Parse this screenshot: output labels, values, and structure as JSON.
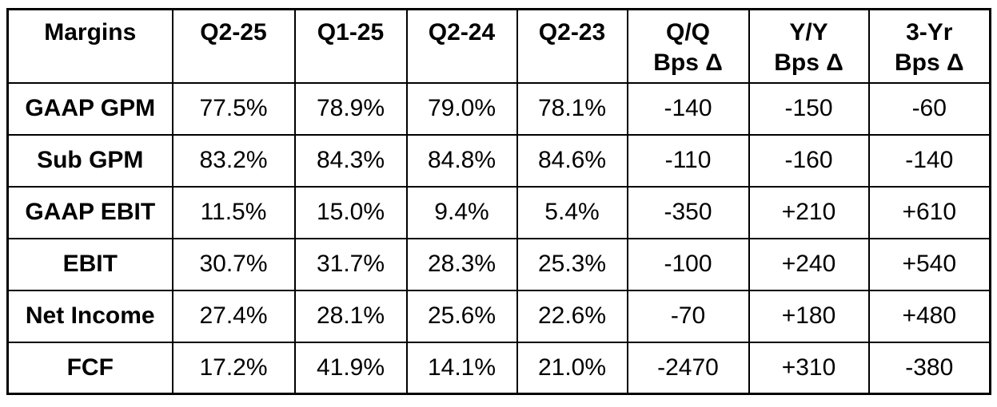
{
  "table": {
    "columns": [
      {
        "label": "Margins",
        "sublabel": ""
      },
      {
        "label": "Q2-25",
        "sublabel": ""
      },
      {
        "label": "Q1-25",
        "sublabel": ""
      },
      {
        "label": "Q2-24",
        "sublabel": ""
      },
      {
        "label": "Q2-23",
        "sublabel": ""
      },
      {
        "label": "Q/Q",
        "sublabel": "Bps Δ"
      },
      {
        "label": "Y/Y",
        "sublabel": "Bps Δ"
      },
      {
        "label": "3-Yr",
        "sublabel": "Bps Δ"
      }
    ],
    "rows": [
      {
        "label": "GAAP GPM",
        "values": [
          "77.5%",
          "78.9%",
          "79.0%",
          "78.1%",
          "-140",
          "-150",
          "-60"
        ]
      },
      {
        "label": "Sub GPM",
        "values": [
          "83.2%",
          "84.3%",
          "84.8%",
          "84.6%",
          "-110",
          "-160",
          "-140"
        ]
      },
      {
        "label": "GAAP EBIT",
        "values": [
          "11.5%",
          "15.0%",
          "9.4%",
          "5.4%",
          "-350",
          "+210",
          "+610"
        ]
      },
      {
        "label": "EBIT",
        "values": [
          "30.7%",
          "31.7%",
          "28.3%",
          "25.3%",
          "-100",
          "+240",
          "+540"
        ]
      },
      {
        "label": "Net Income",
        "values": [
          "27.4%",
          "28.1%",
          "25.6%",
          "22.6%",
          "-70",
          "+180",
          "+480"
        ]
      },
      {
        "label": "FCF",
        "values": [
          "17.2%",
          "41.9%",
          "14.1%",
          "21.0%",
          "-2470",
          "+310",
          "-380"
        ]
      }
    ]
  },
  "colors": {
    "border": "#000000",
    "background": "#ffffff",
    "text": "#000000"
  },
  "chart_data": {
    "type": "table",
    "title": "Margins",
    "column_headers": [
      "Margins",
      "Q2-25",
      "Q1-25",
      "Q2-24",
      "Q2-23",
      "Q/Q Bps Δ",
      "Y/Y Bps Δ",
      "3-Yr Bps Δ"
    ],
    "row_labels": [
      "GAAP GPM",
      "Sub GPM",
      "GAAP EBIT",
      "EBIT",
      "Net Income",
      "FCF"
    ],
    "series": [
      {
        "name": "Q2-25",
        "values_pct": [
          77.5,
          83.2,
          11.5,
          30.7,
          27.4,
          17.2
        ]
      },
      {
        "name": "Q1-25",
        "values_pct": [
          78.9,
          84.3,
          15.0,
          31.7,
          28.1,
          41.9
        ]
      },
      {
        "name": "Q2-24",
        "values_pct": [
          79.0,
          84.8,
          9.4,
          28.3,
          25.6,
          14.1
        ]
      },
      {
        "name": "Q2-23",
        "values_pct": [
          78.1,
          84.6,
          5.4,
          25.3,
          22.6,
          21.0
        ]
      },
      {
        "name": "Q/Q Bps Δ",
        "values_bps": [
          -140,
          -110,
          -350,
          -100,
          -70,
          -2470
        ]
      },
      {
        "name": "Y/Y Bps Δ",
        "values_bps": [
          -150,
          -160,
          210,
          240,
          180,
          310
        ]
      },
      {
        "name": "3-Yr Bps Δ",
        "values_bps": [
          -60,
          -140,
          610,
          540,
          480,
          -380
        ]
      }
    ]
  }
}
